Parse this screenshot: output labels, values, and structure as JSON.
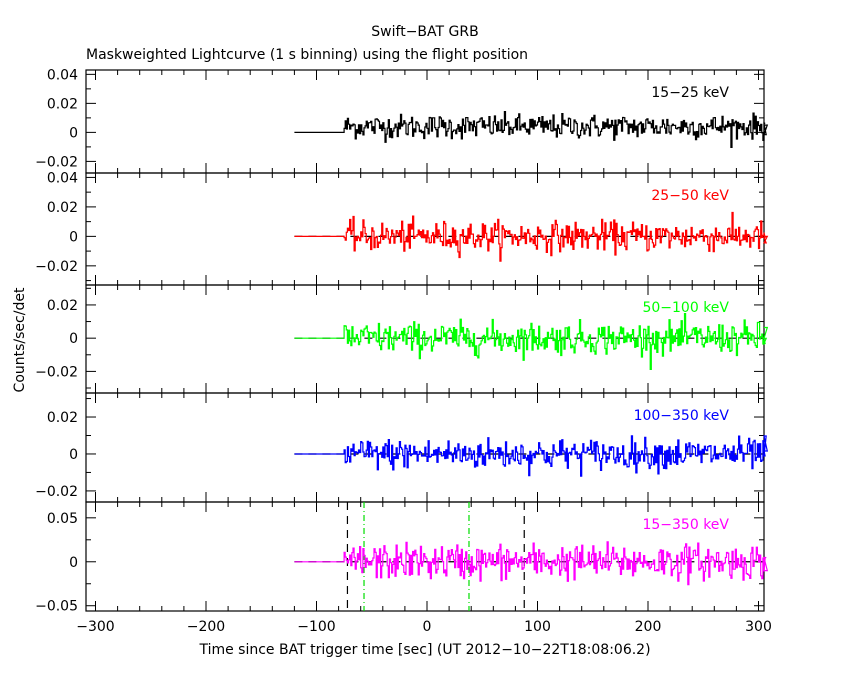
{
  "chart_data": {
    "type": "line",
    "title": "Swift−BAT GRB",
    "subtitle": "Maskweighted Lightcurve (1 s binning) using the flight position",
    "xlabel": "Time since BAT trigger time [sec] (UT 2012−10−22T18:08:06.2)",
    "ylabel": "Counts/sec/det",
    "xlim": [
      -310,
      310
    ],
    "x_ticks": [
      -300,
      -200,
      -100,
      0,
      100,
      200,
      300
    ],
    "x_tick_labels": [
      "−300",
      "−200",
      "−100",
      "0",
      "100",
      "200",
      "300"
    ],
    "binning_sec": 1,
    "data_start_sec": -75,
    "flat_start_sec": -120,
    "series": [
      {
        "name": "15−25 keV",
        "color": "#000000",
        "ylim": [
          -0.028,
          0.043
        ],
        "y_ticks": [
          0.04,
          0.02,
          0,
          -0.02
        ],
        "y_tick_labels": [
          "0.04",
          "0.02",
          "0",
          "−0.02"
        ],
        "noise_sigma": 0.0075,
        "dashed_zero": false
      },
      {
        "name": "25−50 keV",
        "color": "#ff0000",
        "ylim": [
          -0.033,
          0.043
        ],
        "y_ticks": [
          0.04,
          0.02,
          0,
          -0.02
        ],
        "y_tick_labels": [
          "0.04",
          "0.02",
          "0",
          "−0.02"
        ],
        "noise_sigma": 0.009,
        "dashed_zero": true
      },
      {
        "name": "50−100 keV",
        "color": "#00ff00",
        "ylim": [
          -0.033,
          0.032
        ],
        "y_ticks": [
          0.02,
          0,
          -0.02
        ],
        "y_tick_labels": [
          "0.02",
          "0",
          "−0.02"
        ],
        "noise_sigma": 0.0085,
        "dashed_zero": true
      },
      {
        "name": "100−350 keV",
        "color": "#0000ff",
        "ylim": [
          -0.026,
          0.033
        ],
        "y_ticks": [
          0.02,
          0,
          -0.02
        ],
        "y_tick_labels": [
          "0.02",
          "0",
          "−0.02"
        ],
        "noise_sigma": 0.0075,
        "dashed_zero": true
      },
      {
        "name": "15−350 keV",
        "color": "#ff00ff",
        "ylim": [
          -0.056,
          0.068
        ],
        "y_ticks": [
          0.05,
          0,
          -0.05
        ],
        "y_tick_labels": [
          "0.05",
          "0",
          "−0.05"
        ],
        "noise_sigma": 0.018,
        "dashed_zero": true
      }
    ],
    "markers": {
      "black_dashed_sec": [
        -72,
        88
      ],
      "green_dashdot_sec": [
        -57,
        38
      ]
    },
    "grid": false,
    "legend": "per-panel labels, top-right"
  }
}
